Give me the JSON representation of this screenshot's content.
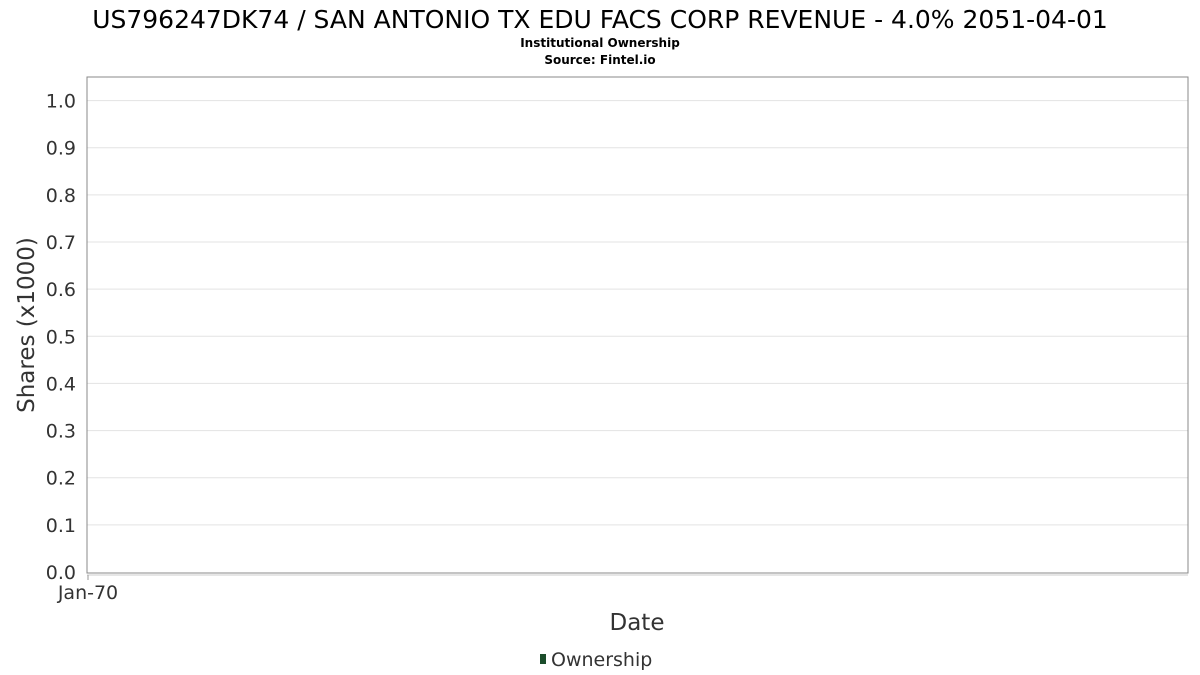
{
  "chart_data": {
    "type": "line",
    "title": "US796247DK74 / SAN ANTONIO TX EDU FACS CORP REVENUE - 4.0% 2051-04-01",
    "subtitle_lines": [
      "Institutional Ownership",
      "Source: Fintel.io"
    ],
    "xlabel": "Date",
    "ylabel": "Shares (x1000)",
    "x_tick_labels": [
      "Jan-70"
    ],
    "y_ticks": [
      0.0,
      0.1,
      0.2,
      0.3,
      0.4,
      0.5,
      0.6,
      0.7,
      0.8,
      0.9,
      1.0
    ],
    "y_tick_labels": [
      "0.0",
      "0.1",
      "0.2",
      "0.3",
      "0.4",
      "0.5",
      "0.6",
      "0.7",
      "0.8",
      "0.9",
      "1.0"
    ],
    "ylim": [
      0,
      1.05
    ],
    "grid": true,
    "legend_position": "bottom-center",
    "series": [
      {
        "name": "Ownership",
        "color": "#1b4d2b",
        "values": []
      }
    ],
    "colors": {
      "grid": "#e3e3e3",
      "frame": "#888888",
      "text": "#333333"
    }
  }
}
